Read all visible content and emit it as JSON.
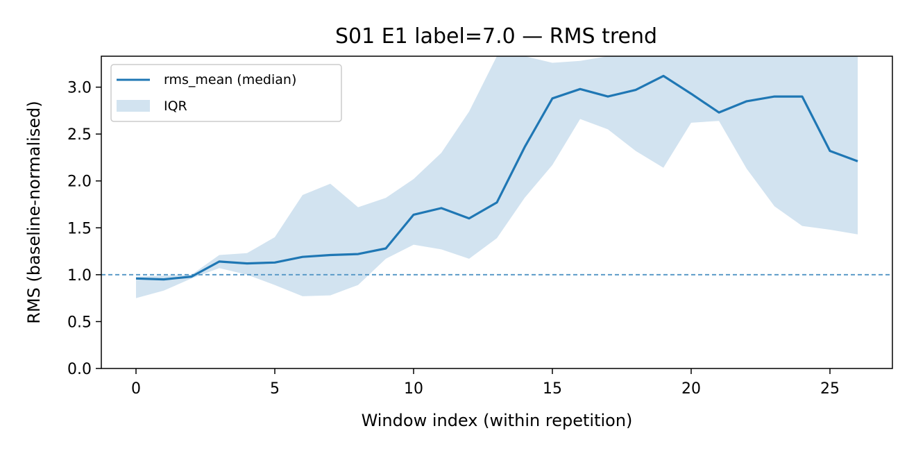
{
  "chart_data": {
    "type": "line",
    "title": "S01 E1 label=7.0 — RMS trend",
    "xlabel": "Window index (within repetition)",
    "ylabel": "RMS (baseline-normalised)",
    "xlim": [
      -1.25,
      27.25
    ],
    "ylim": [
      0,
      3.33
    ],
    "xticks": [
      0,
      5,
      10,
      15,
      20,
      25
    ],
    "yticks": [
      0.0,
      0.5,
      1.0,
      1.5,
      2.0,
      2.5,
      3.0
    ],
    "xtick_labels": [
      "0",
      "5",
      "10",
      "15",
      "20",
      "25"
    ],
    "ytick_labels": [
      "0.0",
      "0.5",
      "1.0",
      "1.5",
      "2.0",
      "2.5",
      "3.0"
    ],
    "grid": false,
    "legend_position": "top-left",
    "reference_line": {
      "y": 1.0,
      "style": "dashed",
      "color": "#5b9bc8"
    },
    "x": [
      0,
      1,
      2,
      3,
      4,
      5,
      6,
      7,
      8,
      9,
      10,
      11,
      12,
      13,
      14,
      15,
      16,
      17,
      18,
      19,
      20,
      21,
      22,
      23,
      24,
      25,
      26
    ],
    "series": [
      {
        "name": "rms_mean (median)",
        "color": "#1f77b4",
        "values": [
          0.96,
          0.95,
          0.98,
          1.14,
          1.12,
          1.13,
          1.19,
          1.21,
          1.22,
          1.28,
          1.64,
          1.71,
          1.6,
          1.77,
          2.36,
          2.88,
          2.98,
          2.9,
          2.97,
          3.12,
          2.93,
          2.73,
          2.85,
          2.9,
          2.9,
          2.32,
          2.21
        ]
      }
    ],
    "band": {
      "name": "IQR",
      "color": "#d2e3f0",
      "lower": [
        0.75,
        0.83,
        0.96,
        1.07,
        1.0,
        0.89,
        0.77,
        0.78,
        0.89,
        1.17,
        1.32,
        1.27,
        1.17,
        1.39,
        1.82,
        2.17,
        2.66,
        2.55,
        2.32,
        2.14,
        2.62,
        2.64,
        2.13,
        1.73,
        1.52,
        1.48,
        1.43
      ],
      "upper": [
        0.98,
        0.99,
        1.0,
        1.21,
        1.23,
        1.4,
        1.85,
        1.97,
        1.72,
        1.82,
        2.02,
        2.3,
        2.74,
        3.33,
        3.33,
        3.26,
        3.28,
        3.33,
        3.33,
        3.33,
        3.33,
        3.33,
        3.33,
        3.33,
        3.33,
        3.33,
        3.33
      ]
    }
  }
}
